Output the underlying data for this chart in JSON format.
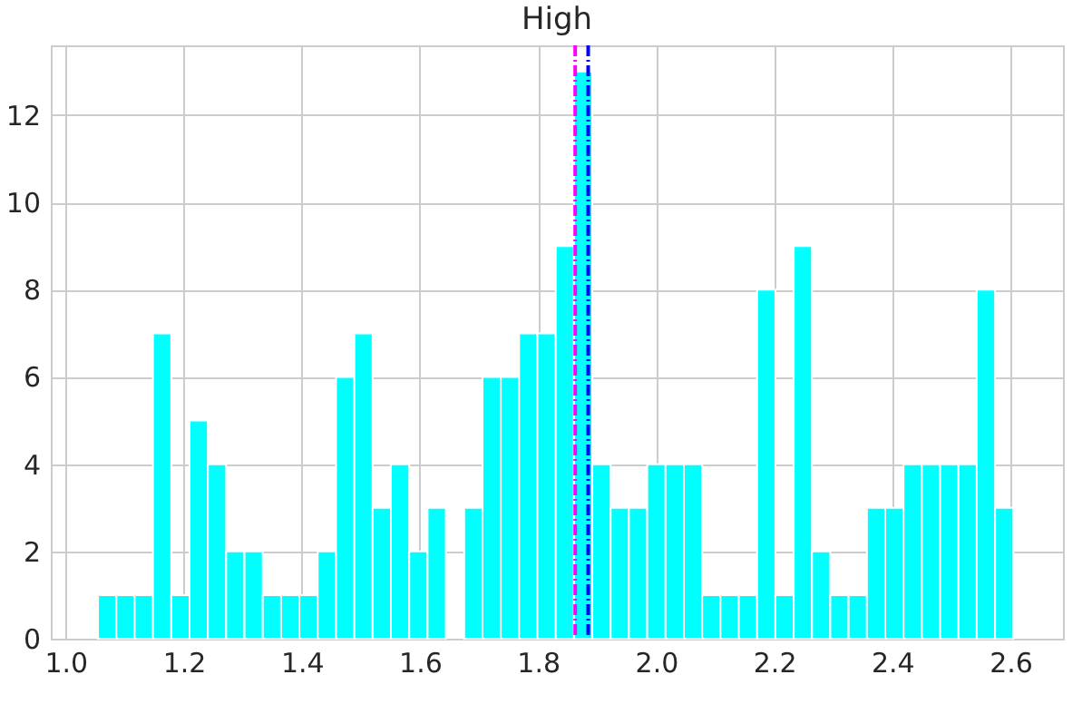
{
  "chart_data": {
    "type": "histogram",
    "title": "High",
    "color": "#00ffff",
    "bins": [
      1.055,
      1.086,
      1.117,
      1.148,
      1.179,
      1.21,
      1.241,
      1.272,
      1.303,
      1.334,
      1.365,
      1.396,
      1.427,
      1.458,
      1.489,
      1.52,
      1.551,
      1.582,
      1.613,
      1.644,
      1.675,
      1.706,
      1.737,
      1.768,
      1.799,
      1.83,
      1.861,
      1.892,
      1.923,
      1.954,
      1.985,
      2.016,
      2.047,
      2.078,
      2.109,
      2.14,
      2.171,
      2.202,
      2.233,
      2.264,
      2.295,
      2.326,
      2.357,
      2.388,
      2.419,
      2.45,
      2.481,
      2.512,
      2.543,
      2.574,
      2.605
    ],
    "values": [
      1,
      1,
      1,
      7,
      1,
      5,
      4,
      2,
      2,
      1,
      1,
      1,
      2,
      6,
      7,
      3,
      4,
      2,
      3,
      0,
      3,
      6,
      6,
      7,
      7,
      9,
      13,
      4,
      3,
      3,
      4,
      4,
      4,
      1,
      1,
      1,
      8,
      1,
      9,
      2,
      1,
      1,
      3,
      3,
      4,
      4,
      4,
      4,
      8,
      3
    ],
    "xlim": [
      0.975,
      2.689
    ],
    "xticks": [
      {
        "value": 1,
        "label": "1.0"
      },
      {
        "value": 1.2,
        "label": "1.2"
      },
      {
        "value": 1.4,
        "label": "1.4"
      },
      {
        "value": 1.6,
        "label": "1.6"
      },
      {
        "value": 1.8,
        "label": "1.8"
      },
      {
        "value": 2,
        "label": "2.0"
      },
      {
        "value": 2.2,
        "label": "2.2"
      },
      {
        "value": 2.4,
        "label": "2.4"
      },
      {
        "value": 2.6,
        "label": "2.6"
      }
    ],
    "ylim": [
      0,
      13.6
    ],
    "yticks": [
      0,
      2,
      4,
      6,
      8,
      10,
      12
    ],
    "grid": true,
    "ref_lines": [
      {
        "axis": "x",
        "value": 1.863,
        "color": "#ff00ff",
        "line_style": "dashdot"
      },
      {
        "axis": "x",
        "value": 1.885,
        "color": "#0000ff",
        "line_style": "dashdot"
      }
    ]
  }
}
